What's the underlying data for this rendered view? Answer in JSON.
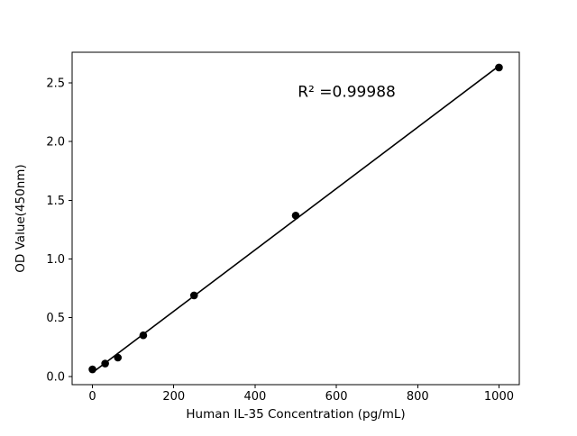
{
  "figure": {
    "background": "#ffffff"
  },
  "chart_data": {
    "type": "scatter",
    "title": "",
    "xlabel": "Human IL-35 Concentration (pg/mL)",
    "ylabel": "OD Value(450nm)",
    "x": [
      0,
      31.25,
      62.5,
      125,
      250,
      500,
      1000
    ],
    "y": [
      0.06,
      0.11,
      0.16,
      0.35,
      0.69,
      1.37,
      2.63
    ],
    "fit": {
      "type": "linear",
      "label": "R² =0.99988"
    },
    "annotation": {
      "text": "R² =0.99988",
      "x": 505,
      "y": 2.42
    },
    "xlim": [
      -50,
      1050
    ],
    "ylim": [
      -0.07,
      2.76
    ],
    "xticks": [
      0,
      200,
      400,
      600,
      800,
      1000
    ],
    "xtick_labels": [
      "0",
      "200",
      "400",
      "600",
      "800",
      "1000"
    ],
    "yticks": [
      0.0,
      0.5,
      1.0,
      1.5,
      2.0,
      2.5
    ],
    "ytick_labels": [
      "0.0",
      "0.5",
      "1.0",
      "1.5",
      "2.0",
      "2.5"
    ],
    "grid": false,
    "legend_position": "none",
    "marker_color": "#000000",
    "line_color": "#000000",
    "axis_color": "#000000"
  }
}
